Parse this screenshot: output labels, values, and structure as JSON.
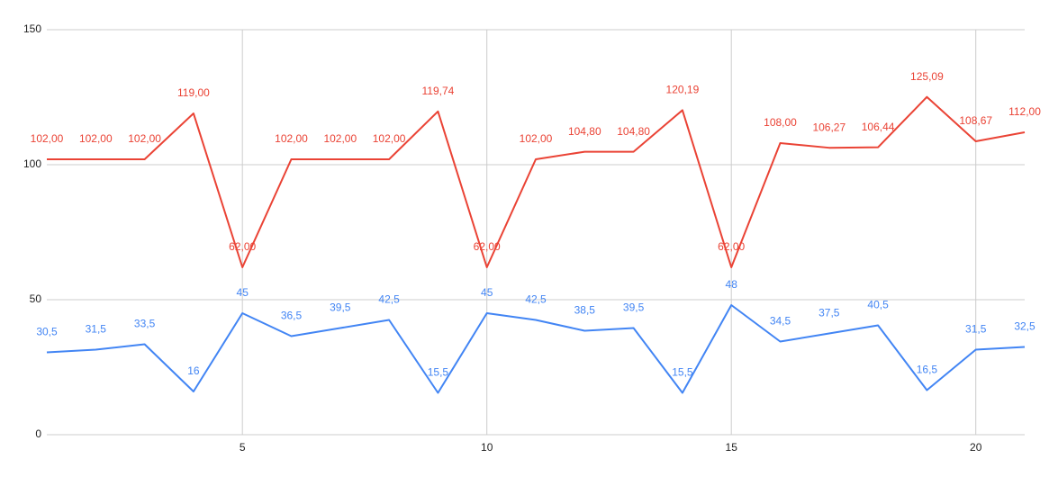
{
  "chart_data": {
    "type": "line",
    "x": [
      1,
      2,
      3,
      4,
      5,
      6,
      7,
      8,
      9,
      10,
      11,
      12,
      13,
      14,
      15,
      16,
      17,
      18,
      19,
      20,
      21
    ],
    "series": [
      {
        "color": "#ea4335",
        "values": [
          102,
          102,
          102,
          119,
          62,
          102,
          102,
          102,
          119.74,
          62,
          102,
          104.8,
          104.8,
          120.19,
          62,
          108,
          106.27,
          106.44,
          125.09,
          108.67,
          112
        ],
        "value_labels": [
          "102,00",
          "102,00",
          "102,00",
          "119,00",
          "62,00",
          "102,00",
          "102,00",
          "102,00",
          "119,74",
          "62,00",
          "102,00",
          "104,80",
          "104,80",
          "120,19",
          "62,00",
          "108,00",
          "106,27",
          "106,44",
          "125,09",
          "108,67",
          "112,00"
        ]
      },
      {
        "color": "#4285f4",
        "values": [
          30.5,
          31.5,
          33.5,
          16,
          45,
          36.5,
          39.5,
          42.5,
          15.5,
          45,
          42.5,
          38.5,
          39.5,
          15.5,
          48,
          34.5,
          37.5,
          40.5,
          16.5,
          31.5,
          32.5
        ],
        "value_labels": [
          "30,5",
          "31,5",
          "33,5",
          "16",
          "45",
          "36,5",
          "39,5",
          "42,5",
          "15,5",
          "45",
          "42,5",
          "38,5",
          "39,5",
          "15,5",
          "48",
          "34,5",
          "37,5",
          "40,5",
          "16,5",
          "31,5",
          "32,5"
        ]
      }
    ],
    "xlim": [
      1,
      21
    ],
    "xticks": [
      5,
      10,
      15,
      20
    ],
    "ylim": [
      0,
      150
    ],
    "yticks": [
      0,
      50,
      100,
      150
    ],
    "grid": true
  }
}
